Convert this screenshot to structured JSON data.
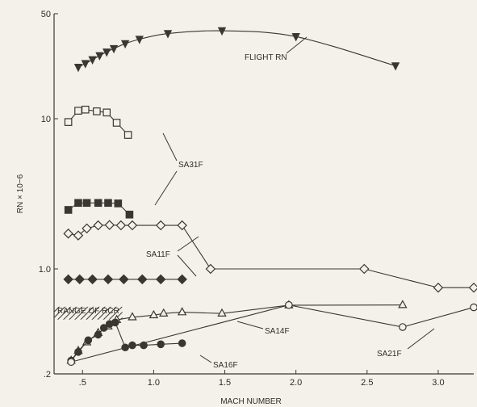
{
  "chart_data": {
    "type": "line",
    "xlabel": "MACH NUMBER",
    "ylabel": "RN × 10−6",
    "x_scale": "linear",
    "y_scale": "log",
    "xlim": [
      0.3,
      3.25
    ],
    "ylim": [
      0.2,
      50
    ],
    "x_ticks": [
      {
        "value": 0.5,
        "label": ".5"
      },
      {
        "value": 1.0,
        "label": "1.0"
      },
      {
        "value": 1.5,
        "label": "1.5"
      },
      {
        "value": 2.0,
        "label": "2.0"
      },
      {
        "value": 2.5,
        "label": "2.5"
      },
      {
        "value": 3.0,
        "label": "3.0"
      }
    ],
    "y_ticks": [
      {
        "value": 0.2,
        "label": ".2"
      },
      {
        "value": 1.0,
        "label": "1.0"
      },
      {
        "value": 10,
        "label": "10"
      },
      {
        "value": 50,
        "label": "50"
      }
    ],
    "series": [
      {
        "name": "FLIGHT RN",
        "marker": "triangle-down",
        "filled": true,
        "smooth": true,
        "points": [
          [
            0.47,
            22
          ],
          [
            0.52,
            23.3
          ],
          [
            0.57,
            24.7
          ],
          [
            0.62,
            26.3
          ],
          [
            0.67,
            27.8
          ],
          [
            0.72,
            29.3
          ],
          [
            0.8,
            31.6
          ],
          [
            0.9,
            33.8
          ],
          [
            1.1,
            36.9
          ],
          [
            1.48,
            38.5
          ],
          [
            2.0,
            35.2
          ],
          [
            2.7,
            22.5
          ]
        ]
      },
      {
        "name": "",
        "marker": "square",
        "filled": false,
        "points": [
          [
            0.4,
            9.5
          ],
          [
            0.47,
            11.3
          ],
          [
            0.52,
            11.5
          ],
          [
            0.6,
            11.2
          ],
          [
            0.67,
            11.0
          ],
          [
            0.74,
            9.4
          ],
          [
            0.82,
            7.8
          ]
        ]
      },
      {
        "name": "",
        "marker": "square",
        "filled": true,
        "points": [
          [
            0.4,
            2.47
          ],
          [
            0.47,
            2.75
          ],
          [
            0.53,
            2.75
          ],
          [
            0.61,
            2.75
          ],
          [
            0.68,
            2.75
          ],
          [
            0.75,
            2.73
          ],
          [
            0.83,
            2.3
          ]
        ]
      },
      {
        "name": "",
        "marker": "diamond",
        "filled": false,
        "points": [
          [
            0.4,
            1.72
          ],
          [
            0.47,
            1.67
          ],
          [
            0.53,
            1.86
          ],
          [
            0.61,
            1.95
          ],
          [
            0.69,
            1.96
          ],
          [
            0.77,
            1.95
          ],
          [
            0.85,
            1.95
          ],
          [
            1.05,
            1.95
          ],
          [
            1.2,
            1.95
          ],
          [
            1.4,
            1.0
          ],
          [
            2.48,
            1.0
          ],
          [
            3.0,
            0.75
          ],
          [
            3.25,
            0.75
          ]
        ]
      },
      {
        "name": "",
        "marker": "diamond",
        "filled": true,
        "points": [
          [
            0.4,
            0.852
          ],
          [
            0.48,
            0.852
          ],
          [
            0.57,
            0.852
          ],
          [
            0.68,
            0.852
          ],
          [
            0.79,
            0.852
          ],
          [
            0.92,
            0.852
          ],
          [
            1.05,
            0.852
          ],
          [
            1.2,
            0.852
          ]
        ]
      },
      {
        "name": "SA14F",
        "marker": "triangle",
        "filled": false,
        "points": [
          [
            0.42,
            0.245
          ],
          [
            0.47,
            0.285
          ],
          [
            0.53,
            0.325
          ],
          [
            0.61,
            0.375
          ],
          [
            0.68,
            0.415
          ],
          [
            0.74,
            0.458
          ],
          [
            0.85,
            0.477
          ],
          [
            1.0,
            0.492
          ],
          [
            1.07,
            0.505
          ],
          [
            1.2,
            0.515
          ],
          [
            1.48,
            0.505
          ],
          [
            1.95,
            0.573
          ],
          [
            2.75,
            0.575
          ]
        ]
      },
      {
        "name": "SA16F",
        "marker": "circle",
        "filled": true,
        "points": [
          [
            0.42,
            0.245
          ],
          [
            0.47,
            0.28
          ],
          [
            0.54,
            0.335
          ],
          [
            0.61,
            0.365
          ],
          [
            0.65,
            0.405
          ],
          [
            0.69,
            0.43
          ],
          [
            0.73,
            0.44
          ],
          [
            0.8,
            0.3
          ],
          [
            0.85,
            0.31
          ],
          [
            0.93,
            0.31
          ],
          [
            1.05,
            0.315
          ],
          [
            1.2,
            0.32
          ]
        ]
      },
      {
        "name": "SA21F",
        "marker": "circle",
        "filled": false,
        "points": [
          [
            0.42,
            0.24
          ],
          [
            1.95,
            0.575
          ],
          [
            2.75,
            0.41
          ],
          [
            3.25,
            0.555
          ]
        ]
      }
    ],
    "annotations": [
      {
        "text": "FLIGHT RN",
        "data_name": "label-flight"
      },
      {
        "text": "SA31F",
        "data_name": "label-sa31f"
      },
      {
        "text": "SA11F",
        "data_name": "label-sa11f"
      },
      {
        "text": "SA14F",
        "data_name": "label-sa14f"
      },
      {
        "text": "SA16F",
        "data_name": "label-sa16f"
      },
      {
        "text": "SA21F",
        "data_name": "label-sa21f"
      },
      {
        "text": "RANGE OF RCR",
        "data_name": "label-range"
      }
    ],
    "shaded_band": {
      "label": "RANGE OF RCR",
      "x": [
        0.3,
        0.78
      ],
      "y": [
        0.46,
        0.56
      ],
      "pattern": "diagonal-hatch"
    },
    "grid": false,
    "legend": "none"
  }
}
